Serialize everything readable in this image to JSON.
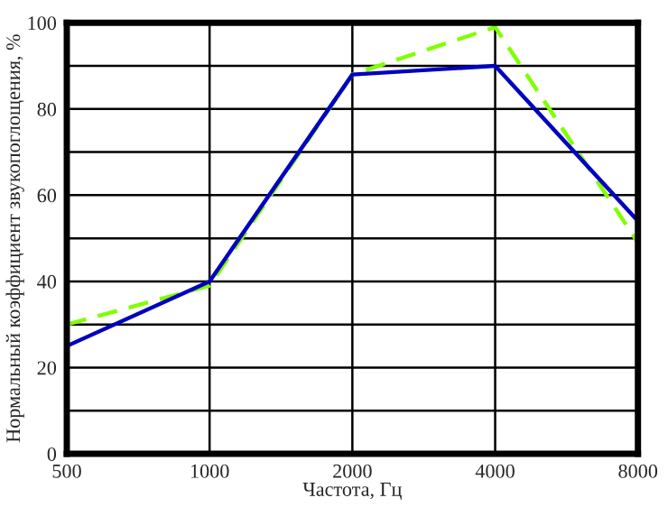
{
  "chart_data": {
    "type": "line",
    "xlabel": "Частота, Гц",
    "ylabel": "Нормальный коэффициент звукопоглощения, %",
    "categories": [
      "500",
      "1000",
      "2000",
      "4000",
      "8000"
    ],
    "series": [
      {
        "color": "#80ff00",
        "line_style": "dashed",
        "values": [
          30,
          39,
          88,
          99,
          49
        ]
      },
      {
        "color": "#0000c0",
        "line_style": "solid",
        "values": [
          25,
          40,
          88,
          90,
          54
        ]
      }
    ],
    "ylim": [
      0,
      100
    ],
    "yticks": [
      0,
      {
        "value": 10,
        "label": null
      },
      20,
      {
        "value": 30,
        "label": null
      },
      40,
      {
        "value": 50,
        "label": null
      },
      60,
      {
        "value": 70,
        "label": null
      },
      80,
      {
        "value": 90,
        "label": null
      },
      100
    ],
    "grid": true,
    "marker": "none"
  }
}
